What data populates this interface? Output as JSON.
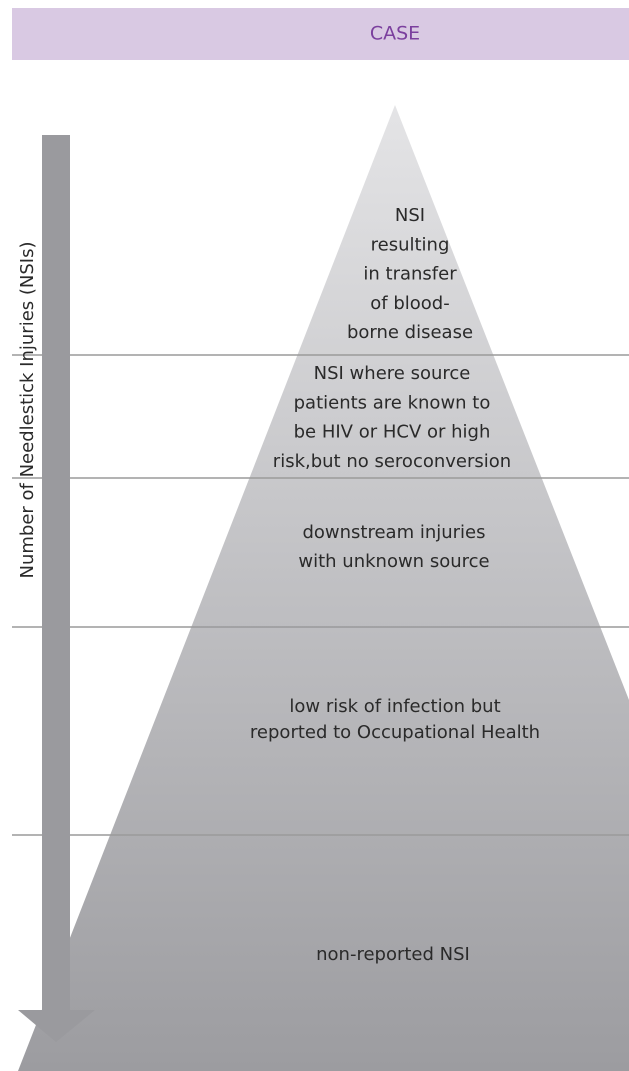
{
  "header": {
    "title": "CASE"
  },
  "axis_label": "Number of Needlestick Injuries (NSIs)",
  "levels": [
    {
      "lines": [
        "NSI",
        "resulting",
        "in transfer",
        "of blood-",
        "borne disease"
      ]
    },
    {
      "lines": [
        "NSI where source",
        "patients are known to",
        "be HIV or HCV or high",
        "risk,but no seroconversion"
      ]
    },
    {
      "lines": [
        "downstream injuries",
        "with unknown source"
      ]
    },
    {
      "lines": [
        "low risk of infection but",
        "reported to Occupational Health"
      ]
    },
    {
      "lines": [
        "non-reported NSI"
      ]
    }
  ]
}
